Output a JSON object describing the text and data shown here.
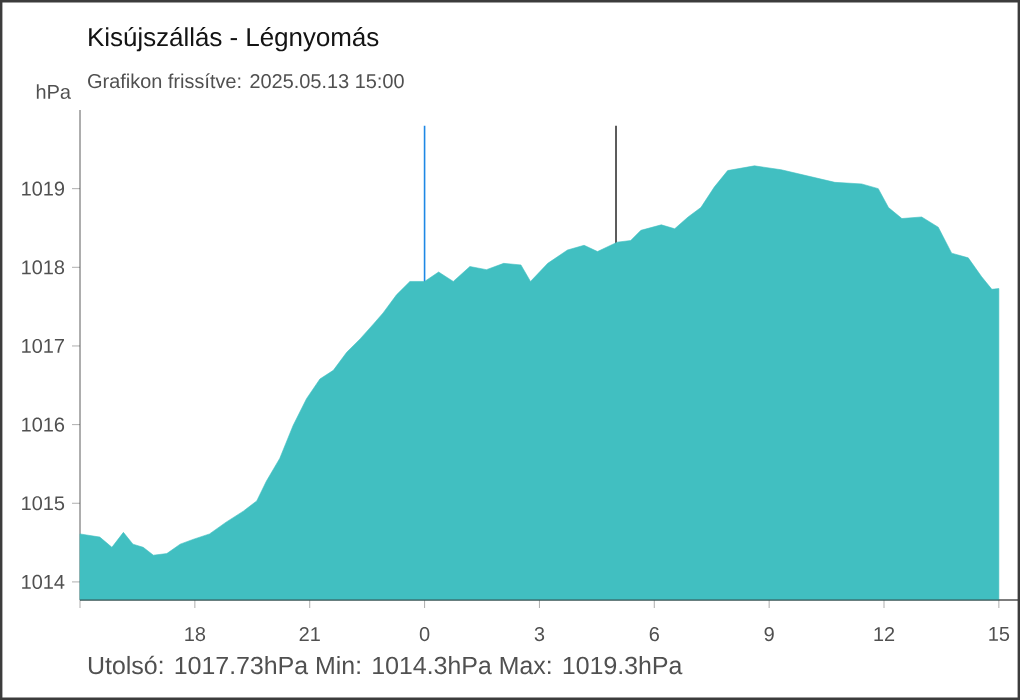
{
  "chart_data": {
    "type": "area",
    "title": "Kisújszállás - Légnyomás",
    "subtitle": "Grafikon frissítve: 2025.05.13 15:00",
    "ylabel": "hPa",
    "annotations": [
      "Utolsó: 1017.73hPa  Min: 1014.3hPa  Max: 1019.3hPa"
    ],
    "x": [
      "2025-05-12T15:00",
      "2025-05-12T15:31",
      "2025-05-12T15:50",
      "2025-05-12T16:08",
      "2025-05-12T16:23",
      "2025-05-12T16:39",
      "2025-05-12T16:55",
      "2025-05-12T17:16",
      "2025-05-12T17:37",
      "2025-05-12T17:57",
      "2025-05-12T18:23",
      "2025-05-12T18:49",
      "2025-05-12T19:16",
      "2025-05-12T19:37",
      "2025-05-12T19:52",
      "2025-05-12T20:13",
      "2025-05-12T20:34",
      "2025-05-12T20:55",
      "2025-05-12T21:16",
      "2025-05-12T21:37",
      "2025-05-12T21:58",
      "2025-05-12T22:19",
      "2025-05-12T22:40",
      "2025-05-12T22:55",
      "2025-05-12T23:16",
      "2025-05-12T23:37",
      "2025-05-13T00:00",
      "2025-05-13T00:22",
      "2025-05-13T00:45",
      "2025-05-13T01:11",
      "2025-05-13T01:37",
      "2025-05-13T02:04",
      "2025-05-13T02:31",
      "2025-05-13T02:46",
      "2025-05-13T03:13",
      "2025-05-13T03:44",
      "2025-05-13T04:10",
      "2025-05-13T04:31",
      "2025-05-13T05:02",
      "2025-05-13T05:23",
      "2025-05-13T05:39",
      "2025-05-13T06:11",
      "2025-05-13T06:32",
      "2025-05-13T06:53",
      "2025-05-13T07:13",
      "2025-05-13T07:34",
      "2025-05-13T07:55",
      "2025-05-13T08:37",
      "2025-05-13T09:19",
      "2025-05-13T10:01",
      "2025-05-13T10:43",
      "2025-05-13T11:25",
      "2025-05-13T11:51",
      "2025-05-13T12:07",
      "2025-05-13T12:28",
      "2025-05-13T12:59",
      "2025-05-13T13:25",
      "2025-05-13T13:46",
      "2025-05-13T14:12",
      "2025-05-13T14:33",
      "2025-05-13T14:49",
      "2025-05-13T15:00"
    ],
    "series": [
      {
        "color": "#41bfc1",
        "values": [
          1014.61,
          1014.57,
          1014.44,
          1014.63,
          1014.48,
          1014.44,
          1014.34,
          1014.36,
          1014.48,
          1014.54,
          1014.61,
          1014.76,
          1014.9,
          1015.03,
          1015.28,
          1015.57,
          1015.99,
          1016.33,
          1016.58,
          1016.69,
          1016.92,
          1017.09,
          1017.28,
          1017.42,
          1017.65,
          1017.82,
          1017.82,
          1017.94,
          1017.82,
          1018.01,
          1017.97,
          1018.05,
          1018.03,
          1017.82,
          1018.05,
          1018.22,
          1018.28,
          1018.2,
          1018.32,
          1018.34,
          1018.47,
          1018.54,
          1018.49,
          1018.64,
          1018.76,
          1019.02,
          1019.23,
          1019.29,
          1019.24,
          1019.16,
          1019.08,
          1019.06,
          1019,
          1018.76,
          1018.62,
          1018.64,
          1018.51,
          1018.18,
          1018.12,
          1017.88,
          1017.72,
          1017.73
        ]
      }
    ],
    "xlim": [
      "2025-05-12T15:00",
      "2025-05-13T15:30"
    ],
    "ylim": [
      1013.77,
      1020
    ],
    "xticks": [
      {
        "value": "2025-05-12T15:00",
        "label": null
      },
      {
        "value": "2025-05-12T18:00",
        "label": "18"
      },
      {
        "value": "2025-05-12T21:00",
        "label": "21"
      },
      {
        "value": "2025-05-13T00:00",
        "label": "0"
      },
      {
        "value": "2025-05-13T03:00",
        "label": "3"
      },
      {
        "value": "2025-05-13T06:00",
        "label": "6"
      },
      {
        "value": "2025-05-13T09:00",
        "label": "9"
      },
      {
        "value": "2025-05-13T12:00",
        "label": "12"
      },
      {
        "value": "2025-05-13T15:00",
        "label": "15"
      }
    ],
    "yticks": [
      1014,
      1015,
      1016,
      1017,
      1018,
      1019
    ],
    "ref_lines": [
      {
        "axis": "x",
        "value": "2025-05-13T00:00",
        "color": "#1e88e5"
      },
      {
        "axis": "x",
        "value": "2025-05-13T05:00",
        "color": "#333333"
      }
    ],
    "grid": false
  }
}
